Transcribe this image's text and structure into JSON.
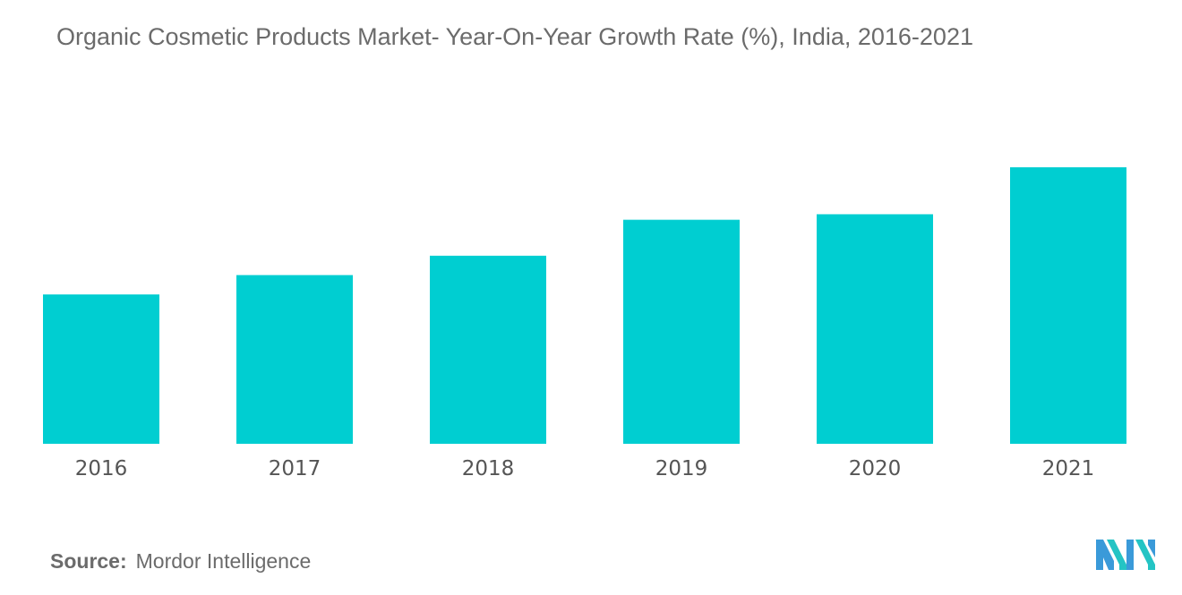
{
  "title": "Organic Cosmetic Products Market- Year-On-Year Growth Rate (%), India, 2016-2021",
  "source_label": "Source:",
  "source_value": "Mordor Intelligence",
  "chart_data": {
    "type": "bar",
    "title": "Organic Cosmetic Products Market- Year-On-Year Growth Rate (%), India, 2016-2021",
    "categories": [
      "2016",
      "2017",
      "2018",
      "2019",
      "2020",
      "2021"
    ],
    "values": [
      5.4,
      6.1,
      6.8,
      8.1,
      8.3,
      10.0
    ],
    "ylim": [
      0,
      11
    ],
    "xlabel": "",
    "ylabel": "",
    "grid": false,
    "legend": "none",
    "bar_color": "#00CED1"
  },
  "logo": {
    "icon": "mordor-intelligence-logo-icon",
    "colors": [
      "#3a9ad9",
      "#24c4c4"
    ]
  }
}
